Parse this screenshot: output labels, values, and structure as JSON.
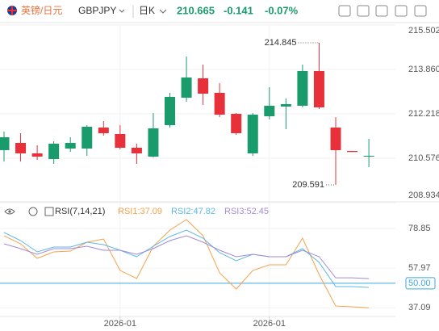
{
  "header": {
    "symbol_cn": "英镑/日元",
    "symbol": "GBPJPY",
    "period": "日K",
    "price": "210.665",
    "change": "-0.141",
    "change_pct": "-0.07%"
  },
  "chart_data": [
    {
      "type": "candlestick",
      "categories": [
        null,
        null,
        null,
        null,
        null,
        null,
        null,
        "2026-01",
        null,
        null,
        null,
        null,
        null,
        null,
        null,
        null,
        "2026-01",
        null,
        null,
        null,
        null,
        null,
        null
      ],
      "open": [
        210.875,
        211.143,
        210.755,
        210.546,
        210.934,
        210.934,
        211.71,
        211.472,
        210.964,
        210.636,
        211.8,
        212.815,
        213.531,
        212.994,
        212.218,
        210.755,
        212.128,
        212.487,
        212.517,
        213.8,
        211.71,
        210.845,
        210.64
      ],
      "high": [
        211.561,
        211.502,
        211.054,
        211.203,
        211.352,
        211.8,
        211.949,
        211.8,
        211.114,
        212.248,
        212.994,
        214.337,
        214.039,
        213.352,
        212.248,
        212.248,
        213.203,
        212.785,
        214.039,
        214.845,
        212.099,
        210.845,
        211.293
      ],
      "low": [
        210.457,
        210.457,
        210.516,
        210.367,
        210.815,
        210.666,
        211.412,
        210.905,
        210.367,
        210.606,
        211.71,
        212.666,
        212.546,
        212.099,
        211.442,
        210.666,
        212.009,
        211.651,
        212.457,
        212.397,
        209.591,
        210.806,
        210.248
      ],
      "close": [
        211.352,
        210.755,
        210.636,
        211.114,
        211.143,
        211.74,
        211.502,
        210.964,
        210.755,
        211.681,
        212.845,
        213.561,
        212.964,
        212.188,
        211.502,
        212.188,
        212.517,
        212.576,
        213.8,
        212.457,
        210.875,
        210.806,
        210.665
      ],
      "up_color": "#1a9b6c",
      "down_color": "#e8303a",
      "ylim": [
        208.934,
        215.502
      ],
      "yticks": [
        {
          "value": 208.934,
          "label": "208.934"
        },
        {
          "value": 210.576,
          "label": "210.576"
        },
        {
          "value": 212.218,
          "label": "212.218"
        },
        {
          "value": 213.86,
          "label": "213.860"
        },
        {
          "value": 215.502,
          "label": "215.502"
        }
      ],
      "max_label": 214.845,
      "min_label": 209.591,
      "grid": true
    },
    {
      "type": "line",
      "indicator": "RSI(7,14,21)",
      "legend_labels": [
        "RSI1:37.09",
        "RSI2:47.82",
        "RSI3:52.45"
      ],
      "series": [
        {
          "name": "RSI1",
          "color": "#f5a14b",
          "values": [
            75.03,
            70.78,
            63.13,
            66.53,
            66.95,
            71.63,
            73.33,
            56.74,
            52.49,
            69.51,
            78.01,
            83.54,
            75.03,
            55.47,
            46.96,
            56.74,
            59.72,
            59.72,
            73.76,
            54.62,
            38.0,
            37.6,
            37.09
          ]
        },
        {
          "name": "RSI2",
          "color": "#5bb9e6",
          "values": [
            76.74,
            72.48,
            66.53,
            69.08,
            69.08,
            71.63,
            70.36,
            67.38,
            63.98,
            69.51,
            74.61,
            78.01,
            73.76,
            66.1,
            61.85,
            65.25,
            63.98,
            63.98,
            68.23,
            60.99,
            48.24,
            48.24,
            47.82
          ]
        },
        {
          "name": "RSI3",
          "color": "#a58ad6",
          "values": [
            70.78,
            68.23,
            65.25,
            68.23,
            68.23,
            69.51,
            67.38,
            67.38,
            65.25,
            68.23,
            72.48,
            75.03,
            71.63,
            67.38,
            63.98,
            65.25,
            63.98,
            63.98,
            67.38,
            63.98,
            52.84,
            52.84,
            52.45
          ]
        }
      ],
      "ylim": [
        32.5,
        89.5
      ],
      "yticks": [
        37.09,
        {
          "value": 50,
          "label": "50.00"
        },
        57.97,
        78.85
      ],
      "midline": 50,
      "midline_color": "#3ea6e0",
      "grid": true
    }
  ]
}
